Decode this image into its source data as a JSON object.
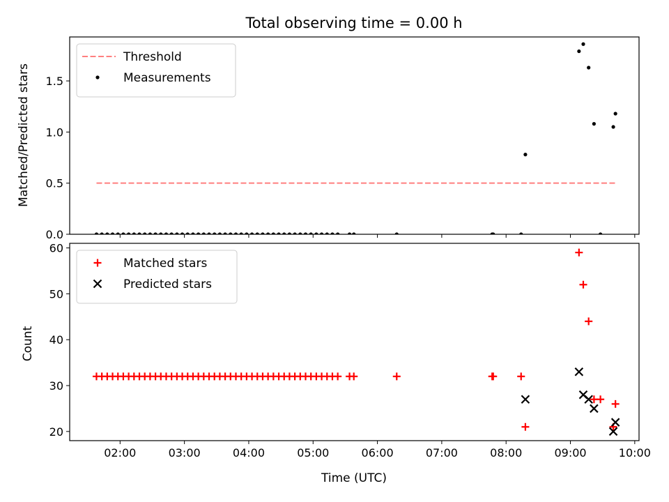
{
  "chart_data": [
    {
      "type": "scatter",
      "title": "Total observing time = 0.00 h",
      "xlabel": "",
      "ylabel": "Matched/Predicted stars",
      "xlim": [
        "01:13",
        "10:04"
      ],
      "ylim": [
        0,
        1.93
      ],
      "yticks": [
        "0.0",
        "0.5",
        "1.0",
        "1.5"
      ],
      "grid": false,
      "legend_position": "top-left",
      "series": [
        {
          "name": "Threshold",
          "style": "dashed-line",
          "color": "#ff7f7f",
          "points": [
            [
              "01:38",
              0.5
            ],
            [
              "09:42",
              0.5
            ]
          ]
        },
        {
          "name": "Measurements",
          "style": "dot",
          "color": "#000000",
          "points": [
            [
              "01:38",
              0
            ],
            [
              "01:43",
              0
            ],
            [
              "01:48",
              0
            ],
            [
              "01:53",
              0
            ],
            [
              "01:58",
              0
            ],
            [
              "02:03",
              0
            ],
            [
              "02:08",
              0
            ],
            [
              "02:13",
              0
            ],
            [
              "02:18",
              0
            ],
            [
              "02:23",
              0
            ],
            [
              "02:28",
              0
            ],
            [
              "02:33",
              0
            ],
            [
              "02:38",
              0
            ],
            [
              "02:43",
              0
            ],
            [
              "02:48",
              0
            ],
            [
              "02:53",
              0
            ],
            [
              "02:58",
              0
            ],
            [
              "03:03",
              0
            ],
            [
              "03:08",
              0
            ],
            [
              "03:13",
              0
            ],
            [
              "03:18",
              0
            ],
            [
              "03:23",
              0
            ],
            [
              "03:28",
              0
            ],
            [
              "03:33",
              0
            ],
            [
              "03:38",
              0
            ],
            [
              "03:43",
              0
            ],
            [
              "03:48",
              0
            ],
            [
              "03:53",
              0
            ],
            [
              "03:58",
              0
            ],
            [
              "04:03",
              0
            ],
            [
              "04:08",
              0
            ],
            [
              "04:13",
              0
            ],
            [
              "04:18",
              0
            ],
            [
              "04:23",
              0
            ],
            [
              "04:28",
              0
            ],
            [
              "04:33",
              0
            ],
            [
              "04:38",
              0
            ],
            [
              "04:43",
              0
            ],
            [
              "04:48",
              0
            ],
            [
              "04:53",
              0
            ],
            [
              "04:58",
              0
            ],
            [
              "05:03",
              0
            ],
            [
              "05:08",
              0
            ],
            [
              "05:13",
              0
            ],
            [
              "05:18",
              0
            ],
            [
              "05:23",
              0
            ],
            [
              "05:34",
              0
            ],
            [
              "05:38",
              0
            ],
            [
              "06:18",
              0
            ],
            [
              "07:47",
              0
            ],
            [
              "07:48",
              0
            ],
            [
              "08:14",
              0
            ],
            [
              "08:18",
              0.78
            ],
            [
              "09:08",
              1.79
            ],
            [
              "09:12",
              1.86
            ],
            [
              "09:17",
              1.63
            ],
            [
              "09:22",
              1.08
            ],
            [
              "09:28",
              0
            ],
            [
              "09:40",
              1.05
            ],
            [
              "09:42",
              1.18
            ]
          ]
        }
      ]
    },
    {
      "type": "scatter",
      "title": "",
      "xlabel": "Time (UTC)",
      "ylabel": "Count",
      "xlim": [
        "01:13",
        "10:04"
      ],
      "ylim": [
        18,
        61
      ],
      "xticks": [
        "02:00",
        "03:00",
        "04:00",
        "05:00",
        "06:00",
        "07:00",
        "08:00",
        "09:00",
        "10:00"
      ],
      "yticks": [
        "20",
        "30",
        "40",
        "50",
        "60"
      ],
      "grid": false,
      "legend_position": "top-left",
      "series": [
        {
          "name": "Matched stars",
          "style": "plus",
          "color": "#ff0000",
          "points": [
            [
              "01:38",
              32
            ],
            [
              "01:43",
              32
            ],
            [
              "01:48",
              32
            ],
            [
              "01:53",
              32
            ],
            [
              "01:58",
              32
            ],
            [
              "02:03",
              32
            ],
            [
              "02:08",
              32
            ],
            [
              "02:13",
              32
            ],
            [
              "02:18",
              32
            ],
            [
              "02:23",
              32
            ],
            [
              "02:28",
              32
            ],
            [
              "02:33",
              32
            ],
            [
              "02:38",
              32
            ],
            [
              "02:43",
              32
            ],
            [
              "02:48",
              32
            ],
            [
              "02:53",
              32
            ],
            [
              "02:58",
              32
            ],
            [
              "03:03",
              32
            ],
            [
              "03:08",
              32
            ],
            [
              "03:13",
              32
            ],
            [
              "03:18",
              32
            ],
            [
              "03:23",
              32
            ],
            [
              "03:28",
              32
            ],
            [
              "03:33",
              32
            ],
            [
              "03:38",
              32
            ],
            [
              "03:43",
              32
            ],
            [
              "03:48",
              32
            ],
            [
              "03:53",
              32
            ],
            [
              "03:58",
              32
            ],
            [
              "04:03",
              32
            ],
            [
              "04:08",
              32
            ],
            [
              "04:13",
              32
            ],
            [
              "04:18",
              32
            ],
            [
              "04:23",
              32
            ],
            [
              "04:28",
              32
            ],
            [
              "04:33",
              32
            ],
            [
              "04:38",
              32
            ],
            [
              "04:43",
              32
            ],
            [
              "04:48",
              32
            ],
            [
              "04:53",
              32
            ],
            [
              "04:58",
              32
            ],
            [
              "05:03",
              32
            ],
            [
              "05:08",
              32
            ],
            [
              "05:13",
              32
            ],
            [
              "05:18",
              32
            ],
            [
              "05:23",
              32
            ],
            [
              "05:34",
              32
            ],
            [
              "05:38",
              32
            ],
            [
              "06:18",
              32
            ],
            [
              "07:47",
              32
            ],
            [
              "07:48",
              32
            ],
            [
              "08:14",
              32
            ],
            [
              "08:18",
              21
            ],
            [
              "09:08",
              59
            ],
            [
              "09:12",
              52
            ],
            [
              "09:17",
              44
            ],
            [
              "09:22",
              27
            ],
            [
              "09:28",
              27
            ],
            [
              "09:40",
              21
            ],
            [
              "09:42",
              26
            ]
          ]
        },
        {
          "name": "Predicted stars",
          "style": "x",
          "color": "#000000",
          "points": [
            [
              "08:18",
              27
            ],
            [
              "09:08",
              33
            ],
            [
              "09:12",
              28
            ],
            [
              "09:17",
              27
            ],
            [
              "09:22",
              25
            ],
            [
              "09:40",
              20
            ],
            [
              "09:42",
              22
            ]
          ]
        }
      ]
    }
  ]
}
